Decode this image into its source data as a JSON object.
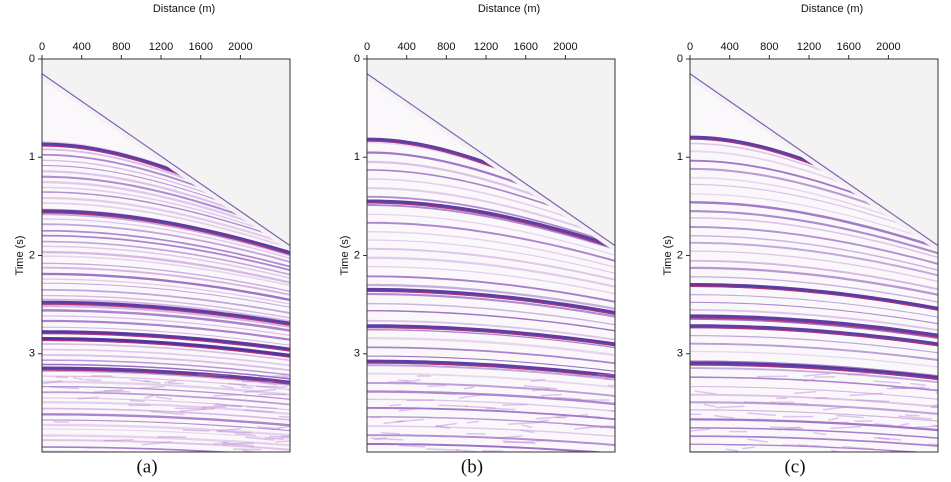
{
  "chart_data": [
    {
      "type": "seismic",
      "caption": "(a)",
      "xlabel": "Distance (m)",
      "ylabel": "Time (s)",
      "xlim": [
        0,
        2500
      ],
      "ylim": [
        0,
        4
      ],
      "xticks": [
        0,
        400,
        800,
        1200,
        1600,
        2000
      ],
      "yticks": [
        0,
        1,
        2,
        3
      ]
    },
    {
      "type": "seismic",
      "caption": "(b)",
      "xlabel": "Distance (m)",
      "ylabel": "Time (s)",
      "xlim": [
        0,
        2500
      ],
      "ylim": [
        0,
        4
      ],
      "xticks": [
        0,
        400,
        800,
        1200,
        1600,
        2000
      ],
      "yticks": [
        0,
        1,
        2,
        3
      ]
    },
    {
      "type": "seismic",
      "caption": "(c)",
      "xlabel": "Distance (m)",
      "ylabel": "Time (s)",
      "xlim": [
        0,
        2500
      ],
      "ylim": [
        0,
        4
      ],
      "xticks": [
        0,
        400,
        800,
        1200,
        1600,
        2000
      ],
      "yticks": [
        0,
        1,
        2,
        3
      ]
    }
  ]
}
